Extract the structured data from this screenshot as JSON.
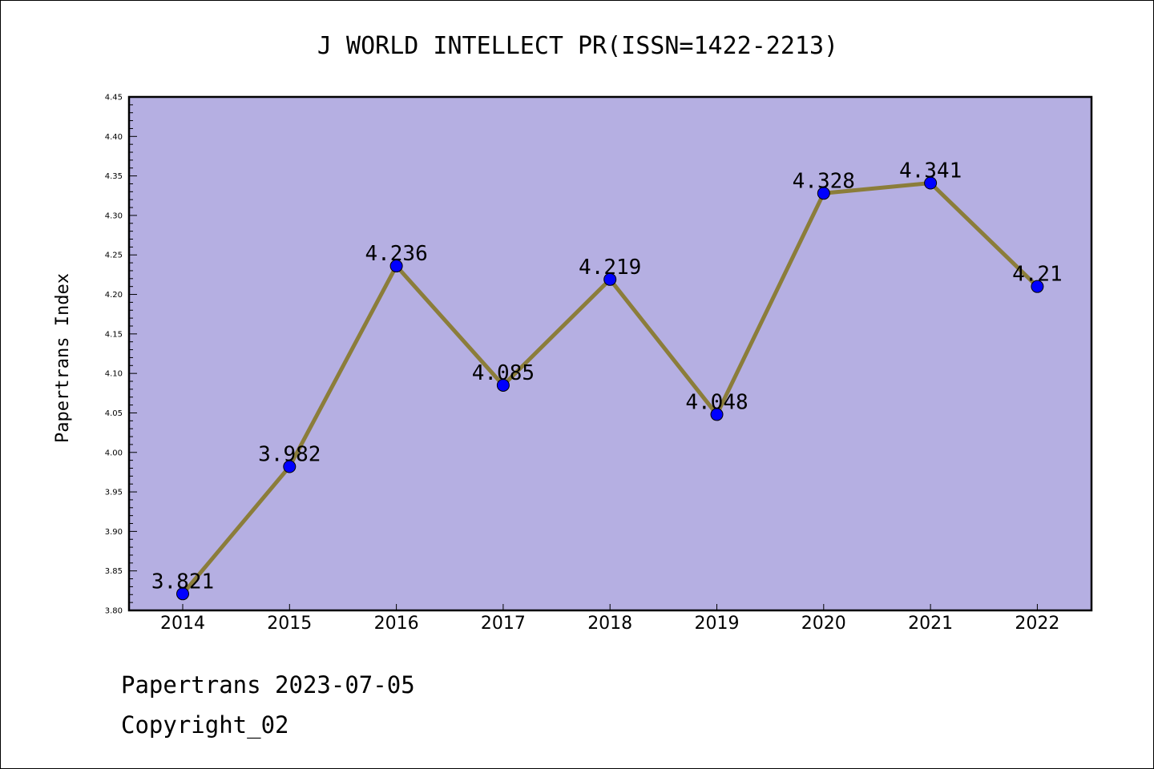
{
  "chart_data": {
    "type": "line",
    "title": "J WORLD INTELLECT PR(ISSN=1422-2213)",
    "xlabel": "",
    "ylabel": "Papertrans Index",
    "categories": [
      "2014",
      "2015",
      "2016",
      "2017",
      "2018",
      "2019",
      "2020",
      "2021",
      "2022"
    ],
    "series": [
      {
        "values": [
          3.821,
          3.982,
          4.236,
          4.085,
          4.219,
          4.048,
          4.328,
          4.341,
          4.21
        ],
        "labels": [
          "3.821",
          "3.982",
          "4.236",
          "4.085",
          "4.219",
          "4.048",
          "4.328",
          "4.341",
          "4.21"
        ]
      }
    ],
    "ylim": [
      3.8,
      4.45
    ],
    "yticks": [
      "3.80",
      "3.85",
      "3.90",
      "3.95",
      "4.00",
      "4.05",
      "4.10",
      "4.15",
      "4.20",
      "4.25",
      "4.30",
      "4.35",
      "4.40",
      "4.45"
    ],
    "grid": false,
    "legend": "none"
  },
  "footer": {
    "line1": "Papertrans 2023-07-05",
    "line2": "Copyright_02"
  },
  "colors": {
    "plot_background": "#b5afe2",
    "line": "#8b7d3a",
    "marker": "#0000ff"
  }
}
